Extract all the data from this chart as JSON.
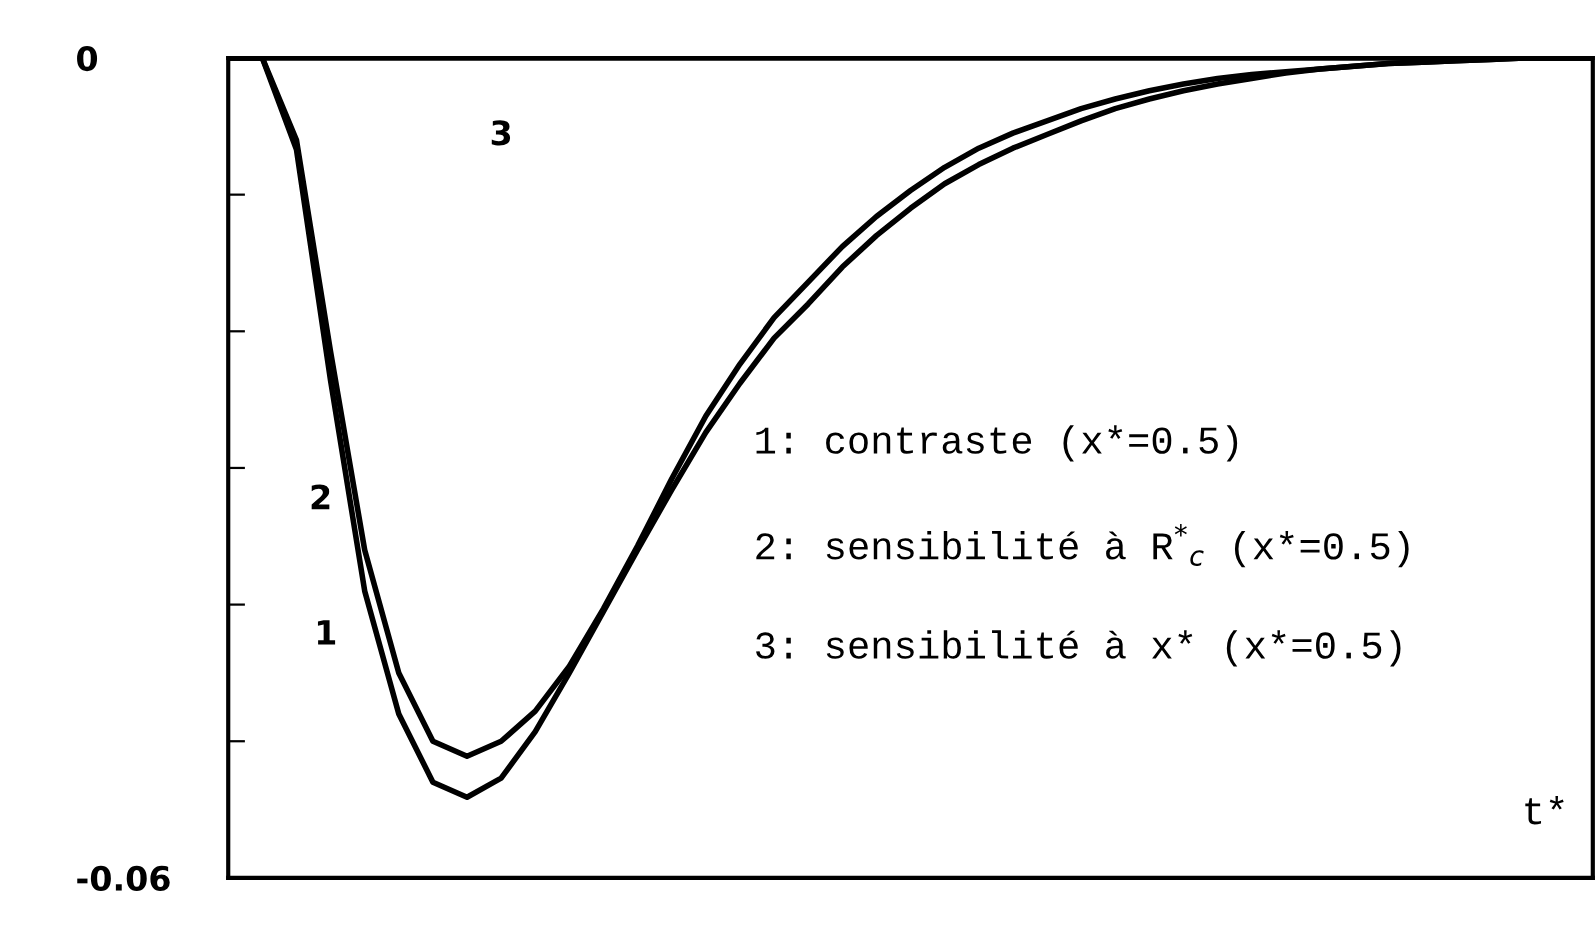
{
  "chart_data": {
    "type": "line",
    "xlabel": "t*",
    "categories": [
      null,
      null,
      null,
      null,
      null,
      null,
      null,
      null,
      null,
      null,
      null,
      null,
      null,
      null,
      null,
      null,
      null,
      null,
      null,
      null,
      null,
      null,
      null,
      null,
      null,
      null,
      null,
      null,
      null,
      null,
      null,
      null,
      null,
      null,
      null,
      null,
      null,
      null,
      null,
      null,
      null
    ],
    "ylim": [
      -0.06,
      0
    ],
    "yticks": [
      -0.06,
      {
        "value": -0.05,
        "label": null
      },
      {
        "value": -0.04,
        "label": null
      },
      {
        "value": -0.03,
        "label": null
      },
      {
        "value": -0.02,
        "label": null
      },
      {
        "value": -0.01,
        "label": null
      },
      0
    ],
    "series": [
      {
        "name": "1",
        "color": "#000000",
        "values": [
          0,
          0,
          -0.0067,
          -0.0236,
          -0.039,
          -0.048,
          -0.053,
          -0.0541,
          -0.0527,
          -0.0493,
          -0.045,
          -0.0405,
          -0.036,
          -0.0316,
          -0.0274,
          -0.0238,
          -0.0205,
          -0.018,
          -0.0153,
          -0.013,
          -0.011,
          -0.0092,
          -0.0078,
          -0.0066,
          -0.0056,
          -0.0046,
          -0.0037,
          -0.003,
          -0.0024,
          -0.0019,
          -0.0015,
          -0.0011,
          -0.0008,
          -0.0006,
          -0.0004,
          -0.0003,
          -0.0002,
          -0.0001,
          0,
          0,
          0
        ]
      },
      {
        "name": "2",
        "color": "#000000",
        "values": [
          0,
          0,
          -0.006,
          -0.0215,
          -0.036,
          -0.045,
          -0.05,
          -0.0511,
          -0.05,
          -0.0478,
          -0.0445,
          -0.0403,
          -0.0357,
          -0.0308,
          -0.0262,
          -0.0224,
          -0.019,
          -0.0164,
          -0.0138,
          -0.0116,
          -0.0097,
          -0.008,
          -0.0066,
          -0.0055,
          -0.0046,
          -0.0037,
          -0.003,
          -0.0024,
          -0.0019,
          -0.0015,
          -0.0012,
          -0.001,
          -0.0008,
          -0.0006,
          -0.0004,
          -0.0003,
          -0.0002,
          -0.0001,
          0,
          0,
          0
        ]
      },
      {
        "name": "3",
        "color": "#000000",
        "values": [
          0,
          0,
          0,
          0,
          0,
          0,
          0,
          0,
          0,
          0,
          0,
          0,
          0,
          0,
          0,
          0,
          0,
          0,
          0,
          0,
          0,
          0,
          0,
          0,
          0,
          0,
          0,
          0,
          0,
          0,
          0,
          0,
          0,
          0,
          0,
          0,
          0,
          0,
          0,
          0,
          0
        ]
      }
    ],
    "annotations": [
      "1: contraste (x*=0.5)",
      "2: sensibilité à R$^{*}$$_{c}$ (x*=0.5)",
      "3: sensibilité à x* (x*=0.5)"
    ]
  }
}
